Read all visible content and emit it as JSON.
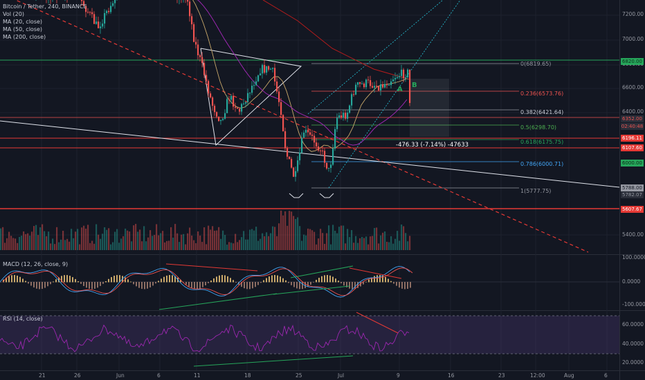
{
  "legend": {
    "symbol": "Bitcoin / Tether, 240, BINANCE",
    "vol": "Vol (20)",
    "ma20": "MA (20, close)",
    "ma50": "MA (50, close)",
    "ma200": "MA (200, close)"
  },
  "price_axis": [
    "7200.00",
    "7000.00",
    "6800.00",
    "6600.00",
    "6400.00",
    "5400.00"
  ],
  "price_tags": [
    {
      "text": "6820.00",
      "bg": "#26a65b",
      "fg": "#0b2a17"
    },
    {
      "text": "6352.00",
      "bg": "#2a2e39",
      "fg": "#ef5350"
    },
    {
      "text": "02:40:48",
      "bg": "#2a2e39",
      "fg": "#ef5350"
    },
    {
      "text": "6196.11",
      "bg": "#e53935",
      "fg": "#ffffff"
    },
    {
      "text": "6107.60",
      "bg": "#e53935",
      "fg": "#ffffff"
    },
    {
      "text": "6000.00",
      "bg": "#26a65b",
      "fg": "#0b2a17"
    },
    {
      "text": "5788.00",
      "bg": "#9598a1",
      "fg": "#131722"
    },
    {
      "text": "5782.07",
      "bg": "#2a2e39",
      "fg": "#9598a1"
    },
    {
      "text": "5607.67",
      "bg": "#e53935",
      "fg": "#ffffff"
    }
  ],
  "fib_levels": [
    {
      "label": "0(6819.65)",
      "color": "#9598a1"
    },
    {
      "label": "0.236(6573.76)",
      "color": "#ef5350"
    },
    {
      "label": "0.382(6421.64)",
      "color": "#c8ccd6"
    },
    {
      "label": "0.5(6298.70)",
      "color": "#4caf50"
    },
    {
      "label": "0.618(6175.75)",
      "color": "#26a65b"
    },
    {
      "label": "0.786(6000.71)",
      "color": "#42a5f5"
    },
    {
      "label": "1(5777.75)",
      "color": "#9598a1"
    }
  ],
  "measure": "-476.33 (-7.14%) -47633",
  "markers": {
    "a": "A",
    "b": "B"
  },
  "macd": {
    "title": "MACD (12, 26, close, 9)",
    "axis": [
      "100.0000",
      "0.0000",
      "-100.0000"
    ]
  },
  "rsi": {
    "title": "RSI (14, close)",
    "axis": [
      "60.0000",
      "40.0000",
      "20.0000"
    ]
  },
  "time_axis": [
    "21",
    "26",
    "Jun",
    "6",
    "11",
    "18",
    "25",
    "Jul",
    "9",
    "16",
    "23",
    "12:00",
    "Aug",
    "6"
  ],
  "colors": {
    "background": "#131722",
    "up": "#26a69a",
    "down": "#ef5350",
    "ma20": "#c9a86a",
    "ma50": "#9c27b0",
    "ma200": "#b71c1c",
    "rsi_line": "#9c27b0"
  }
}
